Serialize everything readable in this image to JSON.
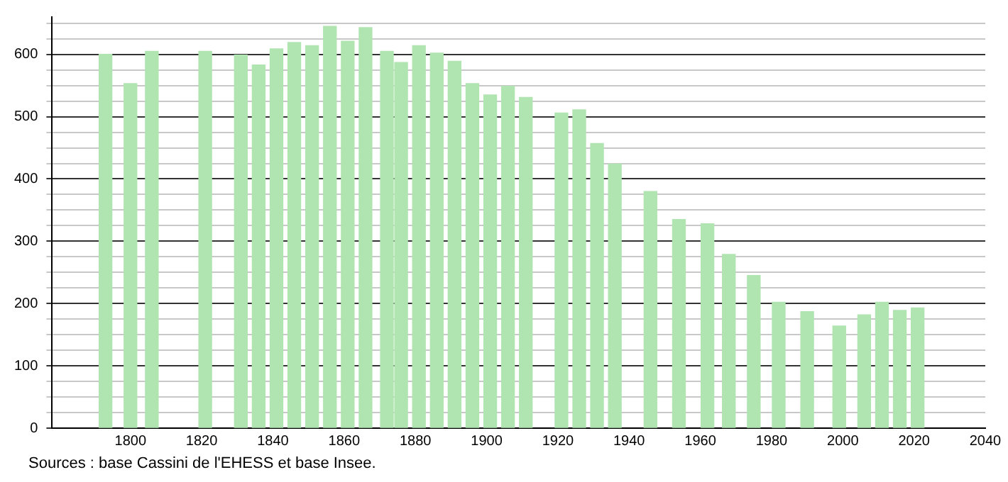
{
  "chart_data": {
    "type": "bar",
    "x": [
      1793,
      1800,
      1806,
      1821,
      1831,
      1836,
      1841,
      1846,
      1851,
      1856,
      1861,
      1866,
      1872,
      1876,
      1881,
      1886,
      1891,
      1896,
      1901,
      1906,
      1911,
      1921,
      1926,
      1931,
      1936,
      1946,
      1954,
      1962,
      1968,
      1975,
      1982,
      1990,
      1999,
      2006,
      2011,
      2016,
      2021
    ],
    "values": [
      600,
      553,
      605,
      605,
      599,
      583,
      609,
      619,
      614,
      645,
      621,
      643,
      605,
      587,
      614,
      602,
      589,
      553,
      535,
      549,
      531,
      506,
      511,
      457,
      424,
      380,
      335,
      328,
      279,
      245,
      202,
      187,
      164,
      182,
      202,
      189,
      193
    ],
    "color": "#b0e4b0",
    "xlim": [
      1778,
      2040
    ],
    "xticks": [
      1800,
      1820,
      1840,
      1860,
      1880,
      1900,
      1920,
      1940,
      1960,
      1980,
      2000,
      2020,
      2040
    ],
    "ylim": [
      0,
      660
    ],
    "yticks": [
      0,
      {
        "value": 25,
        "label": null
      },
      {
        "value": 50,
        "label": null
      },
      {
        "value": 75,
        "label": null
      },
      100,
      {
        "value": 125,
        "label": null
      },
      {
        "value": 150,
        "label": null
      },
      {
        "value": 175,
        "label": null
      },
      200,
      {
        "value": 225,
        "label": null
      },
      {
        "value": 250,
        "label": null
      },
      {
        "value": 275,
        "label": null
      },
      300,
      {
        "value": 325,
        "label": null
      },
      {
        "value": 350,
        "label": null
      },
      {
        "value": 375,
        "label": null
      },
      400,
      {
        "value": 425,
        "label": null
      },
      {
        "value": 450,
        "label": null
      },
      {
        "value": 475,
        "label": null
      },
      500,
      {
        "value": 525,
        "label": null
      },
      {
        "value": 550,
        "label": null
      },
      {
        "value": 575,
        "label": null
      },
      600,
      {
        "value": 625,
        "label": null
      },
      {
        "value": 650,
        "label": null
      }
    ],
    "grid": "y",
    "annotations": [
      "Sources : base Cassini de l'EHESS et base Insee."
    ]
  }
}
